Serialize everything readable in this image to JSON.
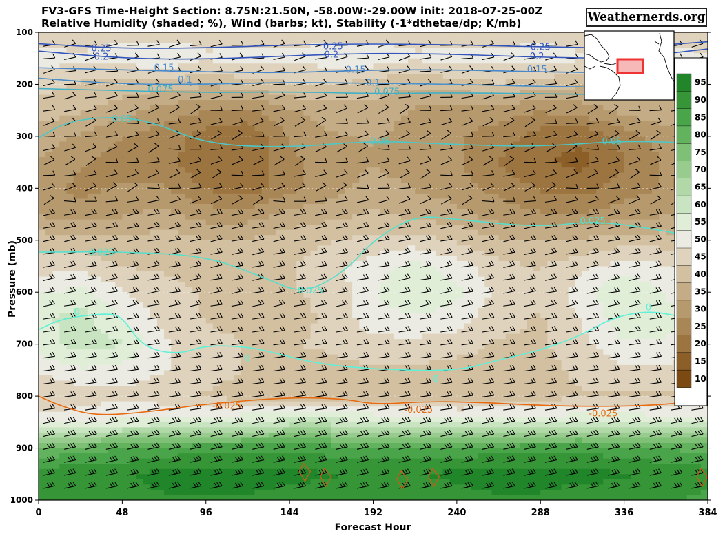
{
  "title_line1": "FV3-GFS Time-Height Section: 8.75N:21.50N, -58.00W:-29.00W init: 2018-07-25-00Z",
  "title_line2": "Relative Humidity (shaded; %), Wind (barbs; kt), Stability (-1*dthetae/dp; K/mb)",
  "brand": "Weathernerds.org",
  "chart_data": {
    "type": "heatmap",
    "xlabel": "Forecast Hour",
    "ylabel": "Pressure (mb)",
    "xlim": [
      0,
      384
    ],
    "ylim": [
      1000,
      100
    ],
    "xticks": [
      "0",
      "48",
      "96",
      "144",
      "192",
      "240",
      "288",
      "336",
      "384"
    ],
    "yticks": [
      "100",
      "200",
      "300",
      "400",
      "500",
      "600",
      "700",
      "800",
      "900",
      "1000"
    ],
    "colorbar": {
      "values": [
        "10",
        "15",
        "20",
        "25",
        "30",
        "35",
        "40",
        "45",
        "50",
        "55",
        "60",
        "65",
        "70",
        "75",
        "80",
        "85",
        "90",
        "95"
      ],
      "colors": [
        "#7a4a12",
        "#8d5f28",
        "#9c7440",
        "#a98655",
        "#b69a6e",
        "#c4ac86",
        "#d2c0a0",
        "#dfd3bd",
        "#ecebe3",
        "#e0eed8",
        "#c9e4c0",
        "#b1d8a7",
        "#98cc8e",
        "#7ec075",
        "#63b35e",
        "#4aa54a",
        "#369637",
        "#21862a"
      ]
    },
    "rh_levels": [
      100,
      150,
      200,
      250,
      300,
      350,
      400,
      450,
      500,
      550,
      600,
      650,
      700,
      750,
      800,
      850,
      900,
      950,
      1000
    ],
    "rh_hours": [
      0,
      24,
      48,
      72,
      96,
      120,
      144,
      168,
      192,
      216,
      240,
      264,
      288,
      312,
      336,
      360,
      384
    ],
    "rh_grid": [
      [
        45,
        45,
        46,
        45,
        46,
        45,
        45,
        46,
        45,
        46,
        45,
        45,
        46,
        45,
        45,
        46,
        45
      ],
      [
        50,
        48,
        50,
        52,
        48,
        50,
        49,
        50,
        51,
        48,
        50,
        49,
        50,
        48,
        50,
        49,
        48
      ],
      [
        45,
        42,
        40,
        40,
        38,
        40,
        42,
        43,
        40,
        38,
        40,
        42,
        40,
        38,
        40,
        40,
        42
      ],
      [
        40,
        38,
        35,
        30,
        28,
        26,
        32,
        35,
        36,
        32,
        30,
        30,
        28,
        30,
        34,
        36,
        35
      ],
      [
        35,
        32,
        28,
        25,
        20,
        18,
        28,
        32,
        33,
        30,
        28,
        25,
        20,
        18,
        25,
        30,
        32
      ],
      [
        32,
        28,
        25,
        25,
        18,
        18,
        26,
        30,
        32,
        30,
        28,
        22,
        18,
        16,
        22,
        28,
        28
      ],
      [
        30,
        26,
        28,
        28,
        22,
        20,
        26,
        30,
        35,
        32,
        30,
        26,
        22,
        20,
        25,
        28,
        25
      ],
      [
        32,
        30,
        32,
        34,
        30,
        30,
        34,
        36,
        38,
        36,
        34,
        30,
        28,
        28,
        30,
        32,
        30
      ],
      [
        40,
        40,
        38,
        40,
        38,
        38,
        40,
        42,
        44,
        45,
        42,
        38,
        38,
        38,
        40,
        40,
        38
      ],
      [
        45,
        46,
        42,
        42,
        40,
        40,
        42,
        46,
        50,
        54,
        50,
        44,
        42,
        46,
        50,
        48,
        45
      ],
      [
        52,
        54,
        48,
        44,
        42,
        40,
        42,
        44,
        52,
        58,
        54,
        46,
        44,
        50,
        58,
        52,
        48
      ],
      [
        56,
        60,
        52,
        46,
        42,
        40,
        40,
        44,
        50,
        52,
        50,
        44,
        42,
        48,
        56,
        54,
        50
      ],
      [
        55,
        60,
        58,
        48,
        45,
        42,
        42,
        44,
        46,
        46,
        45,
        42,
        42,
        46,
        52,
        52,
        50
      ],
      [
        48,
        52,
        50,
        48,
        45,
        42,
        40,
        40,
        42,
        42,
        40,
        40,
        40,
        44,
        46,
        46,
        45
      ],
      [
        42,
        44,
        46,
        44,
        42,
        40,
        40,
        40,
        40,
        40,
        40,
        40,
        40,
        42,
        42,
        42,
        42
      ],
      [
        50,
        52,
        54,
        55,
        56,
        58,
        60,
        60,
        58,
        56,
        55,
        55,
        56,
        58,
        58,
        56,
        55
      ],
      [
        78,
        80,
        82,
        84,
        86,
        86,
        86,
        85,
        84,
        84,
        84,
        85,
        86,
        86,
        84,
        82,
        80
      ],
      [
        90,
        92,
        92,
        94,
        95,
        95,
        94,
        93,
        92,
        92,
        94,
        95,
        94,
        94,
        93,
        92,
        90
      ],
      [
        88,
        90,
        90,
        92,
        92,
        92,
        90,
        90,
        90,
        90,
        90,
        92,
        92,
        90,
        90,
        88,
        86
      ]
    ],
    "stability_contours": [
      {
        "value": 0.25,
        "label": "0.25",
        "color": "#3355bb",
        "points": [
          [
            0,
            122
          ],
          [
            48,
            131
          ],
          [
            96,
            130
          ],
          [
            144,
            124
          ],
          [
            192,
            122
          ],
          [
            240,
            124
          ],
          [
            288,
            128
          ],
          [
            336,
            130
          ],
          [
            384,
            118
          ]
        ]
      },
      {
        "value": 0.2,
        "label": "0.2",
        "color": "#3355bb",
        "points": [
          [
            0,
            136
          ],
          [
            48,
            150
          ],
          [
            96,
            152
          ],
          [
            144,
            145
          ],
          [
            192,
            140
          ],
          [
            240,
            142
          ],
          [
            288,
            148
          ],
          [
            336,
            150
          ],
          [
            384,
            132
          ]
        ]
      },
      {
        "value": 0.15,
        "label": "0.15",
        "color": "#4a88cc",
        "points": [
          [
            0,
            168
          ],
          [
            48,
            172
          ],
          [
            96,
            176
          ],
          [
            144,
            178
          ],
          [
            192,
            172
          ],
          [
            240,
            172
          ],
          [
            288,
            176
          ],
          [
            336,
            178
          ],
          [
            384,
            168
          ]
        ]
      },
      {
        "value": 0.1,
        "label": "0.1",
        "color": "#4a90cc",
        "points": [
          [
            0,
            188
          ],
          [
            48,
            200
          ],
          [
            96,
            200
          ],
          [
            144,
            196
          ],
          [
            192,
            198
          ],
          [
            240,
            200
          ],
          [
            288,
            204
          ],
          [
            336,
            206
          ],
          [
            384,
            196
          ]
        ]
      },
      {
        "value": 0.075,
        "label": "0.075",
        "color": "#40b0c8",
        "points": [
          [
            0,
            208
          ],
          [
            48,
            212
          ],
          [
            96,
            216
          ],
          [
            144,
            214
          ],
          [
            192,
            218
          ],
          [
            240,
            216
          ],
          [
            288,
            218
          ],
          [
            336,
            220
          ],
          [
            384,
            214
          ]
        ]
      },
      {
        "value": 0.05,
        "label": "0.05",
        "color": "#4cc8c8",
        "points": [
          [
            0,
            303
          ],
          [
            16,
            272
          ],
          [
            40,
            262
          ],
          [
            64,
            270
          ],
          [
            96,
            315
          ],
          [
            144,
            322
          ],
          [
            192,
            308
          ],
          [
            240,
            316
          ],
          [
            288,
            320
          ],
          [
            336,
            308
          ],
          [
            384,
            314
          ]
        ]
      },
      {
        "value": 0.025,
        "label": "0.025",
        "color": "#55dfcc",
        "points": [
          [
            0,
            523
          ],
          [
            48,
            522
          ],
          [
            96,
            530
          ],
          [
            128,
            570
          ],
          [
            152,
            604
          ],
          [
            176,
            560
          ],
          [
            192,
            500
          ],
          [
            216,
            452
          ],
          [
            240,
            460
          ],
          [
            288,
            475
          ],
          [
            320,
            462
          ],
          [
            360,
            482
          ],
          [
            384,
            500
          ]
        ]
      },
      {
        "value": 0,
        "label": "0",
        "color": "#5ef0d8",
        "points": [
          [
            0,
            672
          ],
          [
            14,
            650
          ],
          [
            40,
            640
          ],
          [
            48,
            648
          ],
          [
            60,
            706
          ],
          [
            80,
            720
          ],
          [
            96,
            702
          ],
          [
            118,
            705
          ],
          [
            130,
            712
          ],
          [
            160,
            738
          ],
          [
            192,
            748
          ],
          [
            240,
            752
          ],
          [
            264,
            730
          ],
          [
            288,
            712
          ],
          [
            312,
            682
          ],
          [
            330,
            648
          ],
          [
            350,
            636
          ],
          [
            366,
            645
          ],
          [
            384,
            658
          ]
        ]
      },
      {
        "value": -0.025,
        "label": "-0.025",
        "color": "#e86a10",
        "points": [
          [
            0,
            800
          ],
          [
            12,
            818
          ],
          [
            32,
            838
          ],
          [
            64,
            830
          ],
          [
            96,
            815
          ],
          [
            144,
            802
          ],
          [
            176,
            805
          ],
          [
            192,
            816
          ],
          [
            224,
            810
          ],
          [
            256,
            812
          ],
          [
            288,
            818
          ],
          [
            320,
            820
          ],
          [
            352,
            818
          ],
          [
            384,
            808
          ]
        ]
      }
    ],
    "contour_labels": [
      {
        "text": "0.25",
        "x": 36,
        "y": 130,
        "color": "#3355bb"
      },
      {
        "text": "0.25",
        "x": 169,
        "y": 126,
        "color": "#3355bb"
      },
      {
        "text": "0.25",
        "x": 288,
        "y": 127,
        "color": "#3355bb"
      },
      {
        "text": "0.2",
        "x": 36,
        "y": 146,
        "color": "#3355bb"
      },
      {
        "text": "0.2",
        "x": 168,
        "y": 142,
        "color": "#3355bb"
      },
      {
        "text": "0.2",
        "x": 286,
        "y": 145,
        "color": "#3355bb"
      },
      {
        "text": "0.15",
        "x": 72,
        "y": 167,
        "color": "#4a88cc"
      },
      {
        "text": "0.15",
        "x": 182,
        "y": 171,
        "color": "#4a88cc"
      },
      {
        "text": "0.15",
        "x": 286,
        "y": 170,
        "color": "#4a88cc"
      },
      {
        "text": "0.1",
        "x": 84,
        "y": 190,
        "color": "#4a90cc"
      },
      {
        "text": "0.1",
        "x": 192,
        "y": 196,
        "color": "#4a90cc"
      },
      {
        "text": "0.075",
        "x": 70,
        "y": 209,
        "color": "#40b0c8"
      },
      {
        "text": "0.075",
        "x": 200,
        "y": 213,
        "color": "#40b0c8"
      },
      {
        "text": "0.05",
        "x": 48,
        "y": 266,
        "color": "#4cc8c8"
      },
      {
        "text": "0.05",
        "x": 196,
        "y": 309,
        "color": "#4cc8c8"
      },
      {
        "text": "0.05",
        "x": 329,
        "y": 309,
        "color": "#4cc8c8"
      },
      {
        "text": "0.025",
        "x": 36,
        "y": 522,
        "color": "#55dfcc"
      },
      {
        "text": "0.025",
        "x": 156,
        "y": 596,
        "color": "#55dfcc"
      },
      {
        "text": "0.025",
        "x": 318,
        "y": 462,
        "color": "#55dfcc"
      },
      {
        "text": "0",
        "x": 22,
        "y": 637,
        "color": "#5ef0d8"
      },
      {
        "text": "0",
        "x": 120,
        "y": 726,
        "color": "#5ef0d8"
      },
      {
        "text": "0",
        "x": 228,
        "y": 766,
        "color": "#5ef0d8"
      },
      {
        "text": "0",
        "x": 350,
        "y": 628,
        "color": "#5ef0d8"
      },
      {
        "text": "-0.025",
        "x": 108,
        "y": 818,
        "color": "#e86a10"
      },
      {
        "text": "-0.025",
        "x": 218,
        "y": 825,
        "color": "#e86a10"
      },
      {
        "text": "-0.025",
        "x": 324,
        "y": 832,
        "color": "#e86a10"
      }
    ],
    "low_level_rings": [
      [
        152,
        945
      ],
      [
        164,
        955
      ],
      [
        208,
        960
      ],
      [
        226,
        955
      ],
      [
        380,
        955
      ]
    ],
    "inset_map_box": {
      "lon": [
        -58.0,
        -29.0
      ],
      "lat": [
        8.75,
        21.5
      ]
    }
  }
}
